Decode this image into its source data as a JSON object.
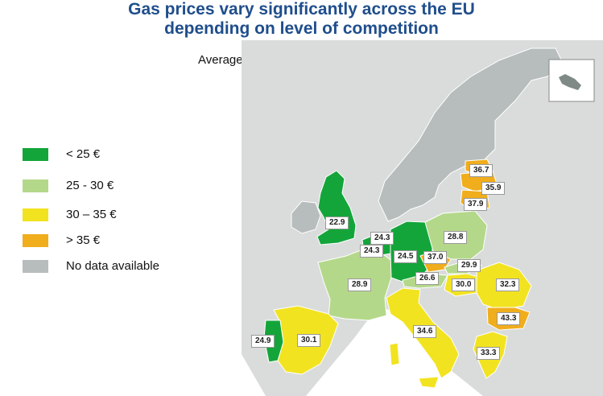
{
  "title_line1": "Gas prices vary significantly across the EU",
  "title_line2": "depending on level of competition",
  "subtitle": "Average gas price in €/MWh",
  "legend": [
    {
      "label": "< 25 €",
      "color": "#14a53a"
    },
    {
      "label": "25 - 30 €",
      "color": "#b4d88a"
    },
    {
      "label": "30 – 35 €",
      "color": "#f2e321"
    },
    {
      "label": "> 35 €",
      "color": "#f0ad1c"
    },
    {
      "label": "No data available",
      "color": "#b7bdbc"
    }
  ],
  "colors": {
    "sea": "#ffffff",
    "land_nodata": "#d9dcdb",
    "border": "#ffffff"
  },
  "values": {
    "uk": "22.9",
    "nl": "24.3",
    "be": "24.3",
    "de": "24.5",
    "at": "26.6",
    "pl": "28.8",
    "cz": "37.0",
    "sk": "29.9",
    "hu": "30.0",
    "ro": "32.3",
    "bg": "43.3",
    "gr": "33.3",
    "it": "34.6",
    "fr": "28.9",
    "es": "30.1",
    "pt": "24.9",
    "lt": "36.7",
    "lv": "35.9",
    "ee": "37.9"
  }
}
